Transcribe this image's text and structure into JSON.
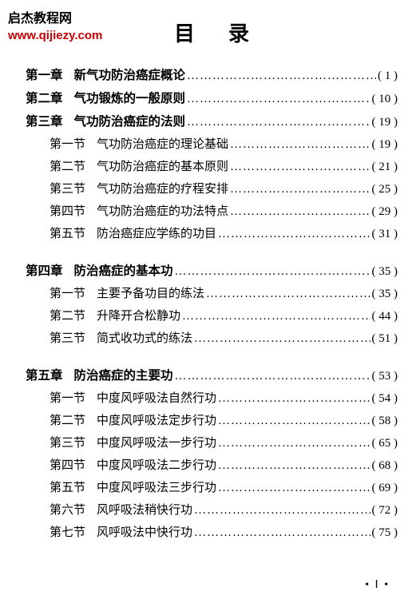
{
  "watermark": {
    "line1": "启杰教程网",
    "line2": "www.qijiezy.com"
  },
  "title": "目录",
  "entries": [
    {
      "type": "chapter",
      "label": "第一章",
      "text": "新气功防治癌症概论",
      "page": "( 1 )"
    },
    {
      "type": "chapter",
      "label": "第二章",
      "text": "气功锻炼的一般原则",
      "page": "( 10 )"
    },
    {
      "type": "chapter",
      "label": "第三章",
      "text": "气功防治癌症的法则",
      "page": "( 19 )"
    },
    {
      "type": "section",
      "label": "第一节",
      "text": "气功防治癌症的理论基础",
      "page": "( 19 )"
    },
    {
      "type": "section",
      "label": "第二节",
      "text": "气功防治癌症的基本原则",
      "page": "( 21 )"
    },
    {
      "type": "section",
      "label": "第三节",
      "text": "气功防治癌症的疗程安排",
      "page": "( 25 )"
    },
    {
      "type": "section",
      "label": "第四节",
      "text": "气功防治癌症的功法特点",
      "page": "( 29 )"
    },
    {
      "type": "section",
      "label": "第五节",
      "text": "防治癌症应学练的功目",
      "page": "( 31 )"
    },
    {
      "type": "gap"
    },
    {
      "type": "chapter",
      "label": "第四章",
      "text": "防治癌症的基本功",
      "page": "( 35 )"
    },
    {
      "type": "section",
      "label": "第一节",
      "text": "主要予备功目的练法",
      "page": "( 35 )"
    },
    {
      "type": "section",
      "label": "第二节",
      "text": "升降开合松静功",
      "page": "( 44 )"
    },
    {
      "type": "section",
      "label": "第三节",
      "text": "简式收功式的练法",
      "page": "( 51 )"
    },
    {
      "type": "gap"
    },
    {
      "type": "chapter",
      "label": "第五章",
      "text": "防治癌症的主要功",
      "page": "( 53 )"
    },
    {
      "type": "section",
      "label": "第一节",
      "text": "中度风呼吸法自然行功",
      "page": "( 54 )"
    },
    {
      "type": "section",
      "label": "第二节",
      "text": "中度风呼吸法定步行功",
      "page": "( 58 )"
    },
    {
      "type": "section",
      "label": "第三节",
      "text": "中度风呼吸法一步行功",
      "page": "( 65 )"
    },
    {
      "type": "section",
      "label": "第四节",
      "text": "中度风呼吸法二步行功",
      "page": "( 68 )"
    },
    {
      "type": "section",
      "label": "第五节",
      "text": "中度风呼吸法三步行功",
      "page": "( 69 )"
    },
    {
      "type": "section",
      "label": "第六节",
      "text": "风呼吸法稍快行功",
      "page": "( 72 )"
    },
    {
      "type": "section",
      "label": "第七节",
      "text": "风呼吸法中快行功",
      "page": "( 75 )"
    }
  ],
  "footer": "• Ⅰ •",
  "dots_fill": "………………………………………………………………"
}
